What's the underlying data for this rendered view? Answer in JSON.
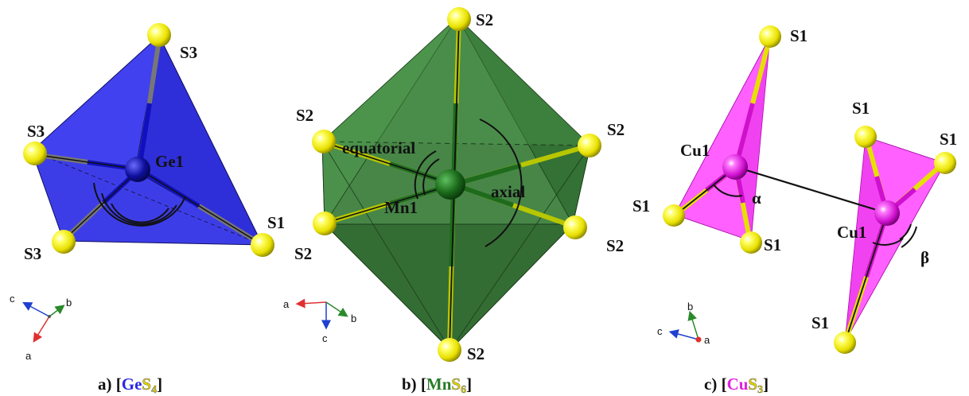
{
  "colors": {
    "sulfur": "#f5f000",
    "germanium": "#1f1fd6",
    "ge_polyhedron": "#3535e8",
    "manganese": "#1e6b1e",
    "mn_polyhedron": "#3c8a3c",
    "copper": "#e020e0",
    "cu_polyhedron": "#ff55ff",
    "bond": "#111111",
    "axis_a": "#e03030",
    "axis_b": "#2a8a2a",
    "axis_c": "#2040d0"
  },
  "panel_a": {
    "atoms": {
      "top": "S3",
      "left": "S3",
      "bottom_left": "S3",
      "right": "S1",
      "center": "Ge1"
    },
    "axes": {
      "a": "a",
      "b": "b",
      "c": "c"
    },
    "caption": {
      "prefix": "a) [",
      "metal": "Ge",
      "sulfur": "S",
      "count": "4",
      "suffix": "]"
    }
  },
  "panel_b": {
    "atoms": {
      "top": "S2",
      "upper_left": "S2",
      "upper_right": "S2",
      "lower_left": "S2",
      "lower_right": "S2",
      "bottom": "S2",
      "center": "Mn1"
    },
    "angle_labels": {
      "equatorial": "equatorial",
      "axial": "axial"
    },
    "axes": {
      "a": "a",
      "b": "b",
      "c": "c"
    },
    "caption": {
      "prefix": "b) [",
      "metal": "Mn",
      "sulfur": "S",
      "count": "6",
      "suffix": "]"
    }
  },
  "panel_c": {
    "atoms": {
      "left_top": "S1",
      "left_left": "S1",
      "left_bottom": "S1",
      "left_center": "Cu1",
      "right_top_left": "S1",
      "right_top_right": "S1",
      "right_bottom": "S1",
      "right_center": "Cu1"
    },
    "angle_labels": {
      "alpha": "α",
      "beta": "β"
    },
    "axes": {
      "a": "a",
      "b": "b",
      "c": "c"
    },
    "caption": {
      "prefix": "c) [",
      "metal": "Cu",
      "sulfur": "S",
      "count": "3",
      "suffix": "]"
    }
  }
}
